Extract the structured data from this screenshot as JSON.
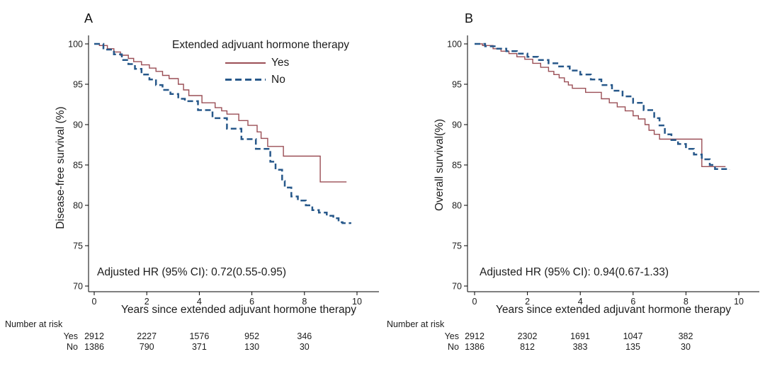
{
  "figure_background": "#ffffff",
  "text_color": "#1c1c1c",
  "chart_data": [
    {
      "type": "line",
      "step": true,
      "panel": "A",
      "title": "A",
      "xlabel": "Years since extended adjuvant hormone therapy",
      "ylabel": "Disease-free survival (%)",
      "xlim": [
        0,
        10
      ],
      "ylim": [
        70,
        100
      ],
      "xticks": [
        0,
        2,
        4,
        6,
        8,
        10
      ],
      "yticks": [
        70,
        75,
        80,
        85,
        90,
        95,
        100
      ],
      "grid": false,
      "annotation": "Adjusted HR (95% CI): 0.72(0.55-0.95)",
      "legend": {
        "title": "Extended adjvuant hormone therapy",
        "position": "top-right",
        "items": [
          {
            "label": "Yes",
            "style": "solid",
            "color": "#9a4e55"
          },
          {
            "label": "No",
            "style": "dashed",
            "color": "#27588a"
          }
        ]
      },
      "series": [
        {
          "name": "Yes",
          "style": "solid",
          "color": "#9a4e55",
          "points": [
            [
              0,
              100
            ],
            [
              0.2,
              99.8
            ],
            [
              0.5,
              99.4
            ],
            [
              0.75,
              99.0
            ],
            [
              1.0,
              98.6
            ],
            [
              1.3,
              98.2
            ],
            [
              1.5,
              97.8
            ],
            [
              1.8,
              97.4
            ],
            [
              2.1,
              97.0
            ],
            [
              2.35,
              96.6
            ],
            [
              2.6,
              96.1
            ],
            [
              2.85,
              95.7
            ],
            [
              3.2,
              95.0
            ],
            [
              3.4,
              94.3
            ],
            [
              3.6,
              93.6
            ],
            [
              4.1,
              92.7
            ],
            [
              4.6,
              92.1
            ],
            [
              4.85,
              91.7
            ],
            [
              5.05,
              91.3
            ],
            [
              5.5,
              90.5
            ],
            [
              5.85,
              89.9
            ],
            [
              6.2,
              89.1
            ],
            [
              6.35,
              88.3
            ],
            [
              6.6,
              87.3
            ],
            [
              7.2,
              86.1
            ],
            [
              8.6,
              82.9
            ],
            [
              9.6,
              82.9
            ]
          ]
        },
        {
          "name": "No",
          "style": "dashed",
          "color": "#27588a",
          "points": [
            [
              0,
              100
            ],
            [
              0.35,
              99.3
            ],
            [
              0.75,
              98.7
            ],
            [
              1.05,
              98.0
            ],
            [
              1.3,
              97.5
            ],
            [
              1.55,
              96.9
            ],
            [
              1.8,
              96.2
            ],
            [
              2.1,
              95.6
            ],
            [
              2.35,
              94.9
            ],
            [
              2.6,
              94.3
            ],
            [
              2.9,
              93.8
            ],
            [
              3.2,
              93.2
            ],
            [
              3.45,
              92.9
            ],
            [
              3.95,
              91.8
            ],
            [
              4.5,
              90.8
            ],
            [
              5.05,
              89.5
            ],
            [
              5.6,
              88.2
            ],
            [
              6.15,
              87.0
            ],
            [
              6.7,
              85.4
            ],
            [
              6.9,
              84.4
            ],
            [
              7.15,
              83.0
            ],
            [
              7.25,
              82.2
            ],
            [
              7.5,
              81.1
            ],
            [
              7.75,
              80.6
            ],
            [
              8.05,
              80.0
            ],
            [
              8.3,
              79.4
            ],
            [
              8.55,
              79.1
            ],
            [
              8.85,
              78.7
            ],
            [
              9.1,
              78.4
            ],
            [
              9.3,
              77.9
            ],
            [
              9.45,
              77.8
            ],
            [
              9.75,
              77.7
            ]
          ]
        }
      ],
      "number_at_risk": {
        "label": "Number at risk",
        "times": [
          0,
          2,
          4,
          6,
          8
        ],
        "rows": [
          {
            "name": "Yes",
            "counts": [
              "2912",
              "2227",
              "1576",
              "952",
              "346"
            ]
          },
          {
            "name": "No",
            "counts": [
              "1386",
              "790",
              "371",
              "130",
              "30"
            ]
          }
        ]
      }
    },
    {
      "type": "line",
      "step": true,
      "panel": "B",
      "title": "B",
      "xlabel": "Years since extended adjuvant hormone therapy",
      "ylabel": "Overall survival(%)",
      "xlim": [
        0,
        10
      ],
      "ylim": [
        70,
        100
      ],
      "xticks": [
        0,
        2,
        4,
        6,
        8,
        10
      ],
      "yticks": [
        70,
        75,
        80,
        85,
        90,
        95,
        100
      ],
      "grid": false,
      "annotation": "Adjusted HR (95% CI): 0.94(0.67-1.33)",
      "legend": null,
      "series": [
        {
          "name": "Yes",
          "style": "solid",
          "color": "#9a4e55",
          "points": [
            [
              0,
              100
            ],
            [
              0.3,
              99.8
            ],
            [
              0.7,
              99.4
            ],
            [
              1.0,
              99.1
            ],
            [
              1.3,
              98.8
            ],
            [
              1.6,
              98.4
            ],
            [
              1.9,
              98.1
            ],
            [
              2.2,
              97.6
            ],
            [
              2.5,
              97.1
            ],
            [
              2.8,
              96.6
            ],
            [
              3.0,
              96.2
            ],
            [
              3.2,
              95.8
            ],
            [
              3.4,
              95.3
            ],
            [
              3.55,
              94.9
            ],
            [
              3.7,
              94.5
            ],
            [
              4.2,
              94.0
            ],
            [
              4.8,
              93.2
            ],
            [
              5.1,
              92.7
            ],
            [
              5.4,
              92.2
            ],
            [
              5.7,
              91.7
            ],
            [
              6.0,
              91.1
            ],
            [
              6.2,
              90.7
            ],
            [
              6.45,
              90.0
            ],
            [
              6.6,
              89.3
            ],
            [
              6.8,
              88.8
            ],
            [
              7.0,
              88.2
            ],
            [
              8.6,
              84.8
            ],
            [
              9.5,
              84.8
            ]
          ]
        },
        {
          "name": "No",
          "style": "dashed",
          "color": "#27588a",
          "points": [
            [
              0,
              100
            ],
            [
              0.4,
              99.7
            ],
            [
              0.8,
              99.4
            ],
            [
              1.2,
              99.1
            ],
            [
              1.6,
              98.8
            ],
            [
              2.0,
              98.4
            ],
            [
              2.4,
              98.0
            ],
            [
              2.8,
              97.6
            ],
            [
              3.2,
              97.2
            ],
            [
              3.6,
              96.7
            ],
            [
              4.0,
              96.2
            ],
            [
              4.4,
              95.6
            ],
            [
              4.8,
              94.9
            ],
            [
              5.2,
              94.2
            ],
            [
              5.6,
              93.5
            ],
            [
              6.0,
              92.7
            ],
            [
              6.4,
              91.8
            ],
            [
              6.8,
              90.8
            ],
            [
              7.0,
              89.9
            ],
            [
              7.2,
              88.8
            ],
            [
              7.45,
              88.1
            ],
            [
              7.7,
              87.6
            ],
            [
              8.0,
              87.0
            ],
            [
              8.3,
              86.3
            ],
            [
              8.6,
              85.7
            ],
            [
              8.9,
              85.0
            ],
            [
              9.1,
              84.5
            ],
            [
              9.65,
              84.4
            ]
          ]
        }
      ],
      "number_at_risk": {
        "label": "Number at risk",
        "times": [
          0,
          2,
          4,
          6,
          8
        ],
        "rows": [
          {
            "name": "Yes",
            "counts": [
              "2912",
              "2302",
              "1691",
              "1047",
              "382"
            ]
          },
          {
            "name": "No",
            "counts": [
              "1386",
              "812",
              "383",
              "135",
              "30"
            ]
          }
        ]
      }
    }
  ]
}
